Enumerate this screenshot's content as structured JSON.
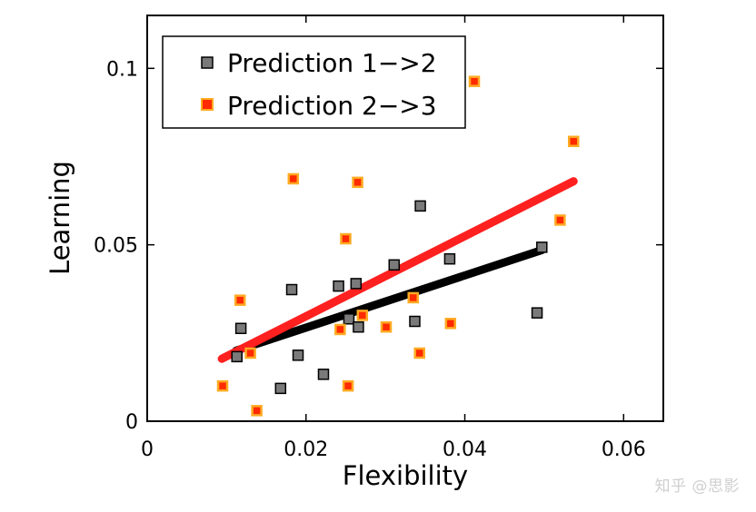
{
  "watermark": "知乎 @思影",
  "chart_data": {
    "type": "scatter",
    "xlabel": "Flexibility",
    "ylabel": "Learning",
    "xlim": [
      0,
      0.065
    ],
    "ylim": [
      0,
      0.115
    ],
    "xticks": [
      0,
      0.02,
      0.04,
      0.06
    ],
    "xtick_labels": [
      "0",
      "0.02",
      "0.04",
      "0.06"
    ],
    "yticks": [
      0,
      0.05,
      0.1
    ],
    "ytick_labels": [
      "0",
      "0.05",
      "0.1"
    ],
    "grid": false,
    "legend_position": "top-left",
    "series": [
      {
        "name": "Prediction 1−>2",
        "marker_color": "#7a7a7a",
        "marker_edge": "#000000",
        "fit_color": "#000000",
        "points": [
          [
            0.0113,
            0.0183
          ],
          [
            0.0118,
            0.0263
          ],
          [
            0.0168,
            0.0093
          ],
          [
            0.0182,
            0.0373
          ],
          [
            0.019,
            0.0187
          ],
          [
            0.0222,
            0.0133
          ],
          [
            0.0241,
            0.0383
          ],
          [
            0.0254,
            0.029
          ],
          [
            0.0263,
            0.039
          ],
          [
            0.0266,
            0.0267
          ],
          [
            0.0311,
            0.0443
          ],
          [
            0.0337,
            0.0283
          ],
          [
            0.0344,
            0.061
          ],
          [
            0.0381,
            0.046
          ],
          [
            0.0491,
            0.0307
          ],
          [
            0.0497,
            0.0493
          ]
        ],
        "fit_line": [
          [
            0.0112,
            0.02
          ],
          [
            0.0497,
            0.0485
          ]
        ]
      },
      {
        "name": "Prediction 2−>3",
        "marker_color": "#ff2a00",
        "marker_edge": "#ffaa22",
        "fit_color": "#ff2020",
        "points": [
          [
            0.0095,
            0.01
          ],
          [
            0.0117,
            0.0343
          ],
          [
            0.013,
            0.0193
          ],
          [
            0.0138,
            0.003
          ],
          [
            0.0184,
            0.0687
          ],
          [
            0.0243,
            0.026
          ],
          [
            0.025,
            0.0517
          ],
          [
            0.0253,
            0.01
          ],
          [
            0.0265,
            0.0677
          ],
          [
            0.0271,
            0.03
          ],
          [
            0.0301,
            0.0267
          ],
          [
            0.0335,
            0.035
          ],
          [
            0.0343,
            0.0193
          ],
          [
            0.0382,
            0.0277
          ],
          [
            0.0412,
            0.0963
          ],
          [
            0.052,
            0.057
          ],
          [
            0.0537,
            0.0793
          ]
        ],
        "fit_line": [
          [
            0.0094,
            0.0177
          ],
          [
            0.0537,
            0.068
          ]
        ]
      }
    ]
  }
}
